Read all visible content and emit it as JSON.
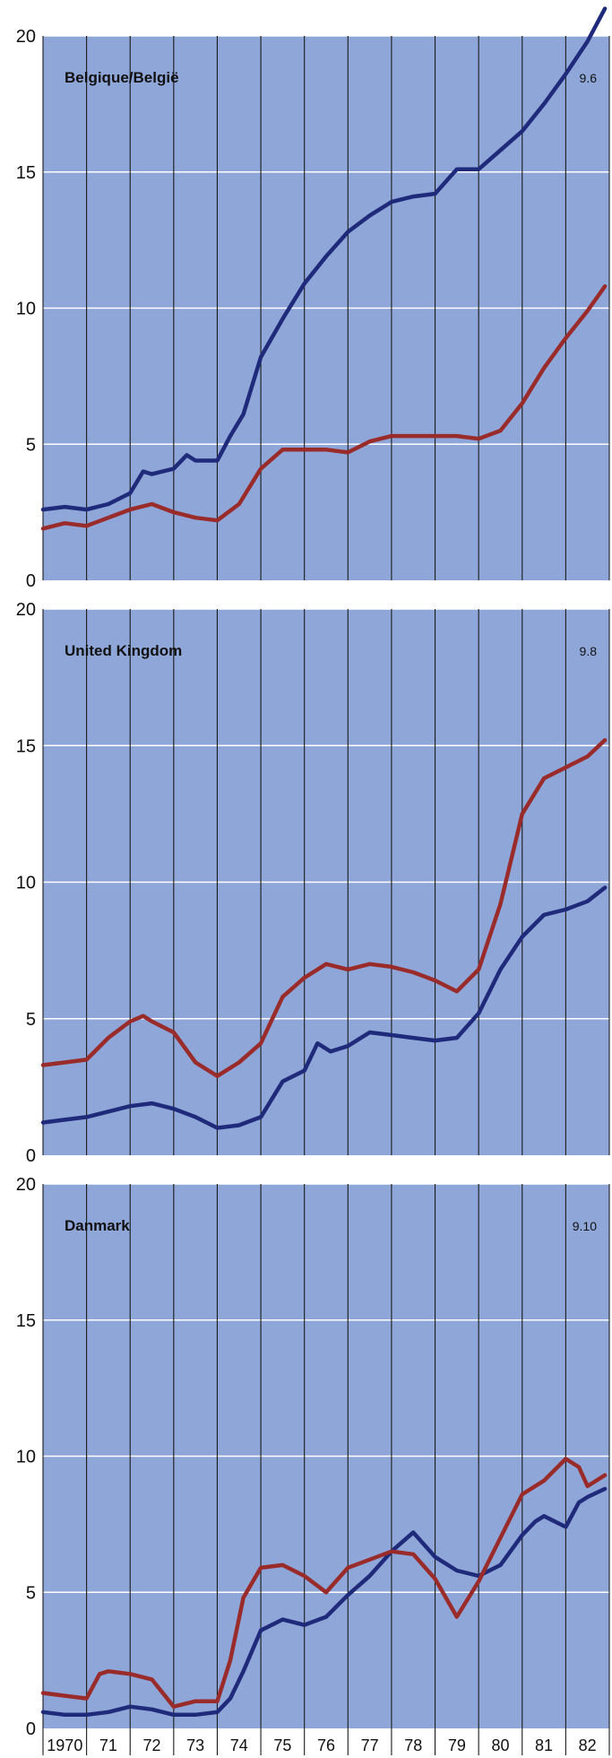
{
  "colors": {
    "panel_background": "#8fa6d8",
    "grid_horizontal": "#ffffff",
    "grid_vertical": "#1a1a1a",
    "series_blue": "#1f2a7a",
    "series_red": "#9a2b2b"
  },
  "chart_data": [
    {
      "type": "line",
      "title": "Belgique/België",
      "annotation": "9.6",
      "xlim": [
        1970,
        1983
      ],
      "ylim": [
        0,
        20
      ],
      "yticks": [
        "0",
        "5",
        "10",
        "15",
        "20"
      ],
      "grid": true,
      "series": [
        {
          "color": "#1f2a7a",
          "x": [
            1970.0,
            1970.5,
            1971.0,
            1971.5,
            1972.0,
            1972.3,
            1972.5,
            1973.0,
            1973.3,
            1973.5,
            1974.0,
            1974.3,
            1974.6,
            1975.0,
            1975.5,
            1976.0,
            1976.5,
            1977.0,
            1977.5,
            1978.0,
            1978.5,
            1979.0,
            1979.5,
            1980.0,
            1980.5,
            1981.0,
            1981.5,
            1982.0,
            1982.5,
            1982.9
          ],
          "y": [
            2.6,
            2.7,
            2.6,
            2.8,
            3.2,
            4.0,
            3.9,
            4.1,
            4.6,
            4.4,
            4.4,
            5.3,
            6.1,
            8.2,
            9.6,
            10.9,
            11.9,
            12.8,
            13.4,
            13.9,
            14.1,
            14.2,
            15.1,
            15.1,
            15.8,
            16.5,
            17.5,
            18.6,
            19.8,
            21.0
          ]
        },
        {
          "color": "#9a2b2b",
          "x": [
            1970.0,
            1970.5,
            1971.0,
            1971.5,
            1972.0,
            1972.5,
            1973.0,
            1973.5,
            1974.0,
            1974.5,
            1975.0,
            1975.5,
            1976.0,
            1976.5,
            1977.0,
            1977.5,
            1978.0,
            1978.5,
            1979.0,
            1979.5,
            1980.0,
            1980.5,
            1981.0,
            1981.5,
            1982.0,
            1982.5,
            1982.9
          ],
          "y": [
            1.9,
            2.1,
            2.0,
            2.3,
            2.6,
            2.8,
            2.5,
            2.3,
            2.2,
            2.8,
            4.1,
            4.8,
            4.8,
            4.8,
            4.7,
            5.1,
            5.3,
            5.3,
            5.3,
            5.3,
            5.2,
            5.5,
            6.5,
            7.8,
            8.9,
            9.9,
            10.8
          ]
        }
      ]
    },
    {
      "type": "line",
      "title": "United Kingdom",
      "annotation": "9.8",
      "xlim": [
        1970,
        1983
      ],
      "ylim": [
        0,
        20
      ],
      "yticks": [
        "0",
        "5",
        "10",
        "15",
        "20"
      ],
      "grid": true,
      "series": [
        {
          "color": "#1f2a7a",
          "x": [
            1970.0,
            1970.5,
            1971.0,
            1971.5,
            1972.0,
            1972.5,
            1973.0,
            1973.5,
            1974.0,
            1974.5,
            1975.0,
            1975.5,
            1976.0,
            1976.3,
            1976.6,
            1977.0,
            1977.5,
            1978.0,
            1978.5,
            1979.0,
            1979.5,
            1980.0,
            1980.5,
            1981.0,
            1981.5,
            1982.0,
            1982.5,
            1982.9
          ],
          "y": [
            1.2,
            1.3,
            1.4,
            1.6,
            1.8,
            1.9,
            1.7,
            1.4,
            1.0,
            1.1,
            1.4,
            2.7,
            3.1,
            4.1,
            3.8,
            4.0,
            4.5,
            4.4,
            4.3,
            4.2,
            4.3,
            5.2,
            6.8,
            8.0,
            8.8,
            9.0,
            9.3,
            9.8
          ]
        },
        {
          "color": "#9a2b2b",
          "x": [
            1970.0,
            1970.5,
            1971.0,
            1971.5,
            1972.0,
            1972.3,
            1972.5,
            1973.0,
            1973.5,
            1974.0,
            1974.5,
            1975.0,
            1975.5,
            1976.0,
            1976.5,
            1977.0,
            1977.5,
            1978.0,
            1978.5,
            1979.0,
            1979.5,
            1980.0,
            1980.5,
            1981.0,
            1981.5,
            1982.0,
            1982.5,
            1982.9
          ],
          "y": [
            3.3,
            3.4,
            3.5,
            4.3,
            4.9,
            5.1,
            4.9,
            4.5,
            3.4,
            2.9,
            3.4,
            4.1,
            5.8,
            6.5,
            7.0,
            6.8,
            7.0,
            6.9,
            6.7,
            6.4,
            6.0,
            6.8,
            9.2,
            12.5,
            13.8,
            14.2,
            14.6,
            15.2
          ]
        }
      ]
    },
    {
      "type": "line",
      "title": "Danmark",
      "annotation": "9.10",
      "xlim": [
        1970,
        1983
      ],
      "ylim": [
        0,
        20
      ],
      "yticks": [
        "0",
        "5",
        "10",
        "15",
        "20"
      ],
      "xticks": [
        "1970",
        "71",
        "72",
        "73",
        "74",
        "75",
        "76",
        "77",
        "78",
        "79",
        "80",
        "81",
        "82"
      ],
      "grid": true,
      "series": [
        {
          "color": "#1f2a7a",
          "x": [
            1970.0,
            1970.5,
            1971.0,
            1971.5,
            1972.0,
            1972.5,
            1973.0,
            1973.5,
            1974.0,
            1974.3,
            1974.6,
            1975.0,
            1975.5,
            1976.0,
            1976.5,
            1977.0,
            1977.5,
            1978.0,
            1978.5,
            1979.0,
            1979.5,
            1980.0,
            1980.5,
            1981.0,
            1981.3,
            1981.5,
            1982.0,
            1982.3,
            1982.5,
            1982.9
          ],
          "y": [
            0.6,
            0.5,
            0.5,
            0.6,
            0.8,
            0.7,
            0.5,
            0.5,
            0.6,
            1.1,
            2.1,
            3.6,
            4.0,
            3.8,
            4.1,
            4.9,
            5.6,
            6.5,
            7.2,
            6.3,
            5.8,
            5.6,
            6.0,
            7.1,
            7.6,
            7.8,
            7.4,
            8.3,
            8.5,
            8.8
          ]
        },
        {
          "color": "#9a2b2b",
          "x": [
            1970.0,
            1970.5,
            1971.0,
            1971.3,
            1971.5,
            1972.0,
            1972.5,
            1973.0,
            1973.5,
            1974.0,
            1974.3,
            1974.6,
            1975.0,
            1975.5,
            1976.0,
            1976.5,
            1977.0,
            1977.5,
            1978.0,
            1978.5,
            1979.0,
            1979.5,
            1980.0,
            1980.5,
            1981.0,
            1981.5,
            1982.0,
            1982.3,
            1982.5,
            1982.9
          ],
          "y": [
            1.3,
            1.2,
            1.1,
            2.0,
            2.1,
            2.0,
            1.8,
            0.8,
            1.0,
            1.0,
            2.5,
            4.8,
            5.9,
            6.0,
            5.6,
            5.0,
            5.9,
            6.2,
            6.5,
            6.4,
            5.5,
            4.1,
            5.4,
            7.0,
            8.6,
            9.1,
            9.9,
            9.6,
            8.9,
            9.3
          ]
        }
      ]
    }
  ]
}
